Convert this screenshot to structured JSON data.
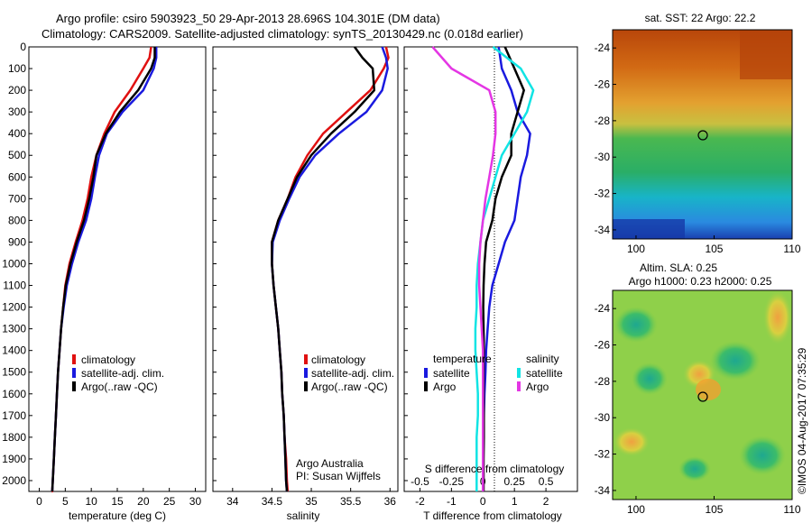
{
  "header": {
    "line1": "Argo profile: csiro 5903923_50 29-Apr-2013 28.696S 104.301E (DM data)",
    "line2": "Climatology: CARS2009. Satellite-adjusted climatology: synTS_20130429.nc (0.018d earlier)"
  },
  "colors": {
    "climatology": "#e01010",
    "satellite": "#1a1adf",
    "argo": "#000000",
    "cyan": "#11e4e4",
    "magenta": "#e436e4"
  },
  "depth_ticks": [
    "0",
    "100",
    "200",
    "300",
    "400",
    "500",
    "600",
    "700",
    "800",
    "900",
    "1000",
    "1100",
    "1200",
    "1300",
    "1400",
    "1500",
    "1600",
    "1700",
    "1800",
    "1900",
    "2000"
  ],
  "legend": {
    "items": [
      "climatology",
      "satellite-adj. clim.",
      "Argo(..raw -QC)"
    ]
  },
  "diff_legend": {
    "temperature": "temperature",
    "salinity": "salinity",
    "satellite": "satellite",
    "argo": "Argo"
  },
  "credits": {
    "line1": "Argo Australia",
    "line2": "PI: Susan Wijffels"
  },
  "sst_map": {
    "title": "sat. SST: 22  Argo: 22.2",
    "y_ticks": [
      "-24",
      "-26",
      "-28",
      "-30",
      "-32",
      "-34"
    ],
    "x_ticks": [
      "100",
      "105",
      "110"
    ]
  },
  "sla_map": {
    "title1": "Altim. SLA: 0.25",
    "title2": "Argo h1000: 0.23 h2000: 0.25",
    "y_ticks": [
      "-24",
      "-26",
      "-28",
      "-30",
      "-32",
      "-34"
    ],
    "x_ticks": [
      "100",
      "105",
      "110"
    ]
  },
  "timestamp": "©IMOS 04-Aug-2017 07:35:29",
  "chart_data": [
    {
      "type": "line",
      "xlabel": "temperature (deg C)",
      "ylabel": "",
      "xlim": [
        -2,
        32
      ],
      "ylim": [
        2050,
        0
      ],
      "x_ticks": [
        "0",
        "5",
        "10",
        "15",
        "20",
        "25",
        "30"
      ],
      "series": [
        {
          "name": "climatology",
          "color": "#e01010",
          "x": [
            21.5,
            21.2,
            20.0,
            17.5,
            14.5,
            12.5,
            11.0,
            10.0,
            9.3,
            8.3,
            7.0,
            5.8,
            5.0,
            4.6,
            4.2,
            3.9,
            3.6,
            3.4,
            3.2,
            3.0,
            2.8,
            2.6,
            2.5,
            2.4
          ],
          "y": [
            0,
            50,
            100,
            200,
            300,
            400,
            500,
            600,
            700,
            800,
            900,
            1000,
            1100,
            1200,
            1300,
            1400,
            1500,
            1600,
            1700,
            1800,
            1900,
            2000,
            2050,
            2050
          ]
        },
        {
          "name": "satellite-adj. clim.",
          "color": "#1a1adf",
          "x": [
            22.5,
            22.5,
            22.0,
            20.0,
            16.0,
            13.0,
            11.5,
            10.7,
            10.0,
            9.0,
            7.5,
            6.3,
            5.3,
            4.7,
            4.2,
            3.9,
            3.6,
            3.4,
            3.2,
            3.0,
            2.8,
            2.6,
            2.5
          ],
          "y": [
            0,
            50,
            100,
            200,
            300,
            400,
            500,
            600,
            700,
            800,
            900,
            1000,
            1100,
            1200,
            1300,
            1400,
            1500,
            1600,
            1700,
            1800,
            1900,
            2000,
            2050
          ]
        },
        {
          "name": "Argo(..raw -QC)",
          "color": "#000000",
          "x": [
            22.2,
            22.2,
            21.5,
            19.0,
            15.5,
            12.8,
            11.0,
            10.4,
            9.6,
            8.6,
            7.2,
            6.0,
            5.1,
            4.6,
            4.2,
            3.9,
            3.6,
            3.4,
            3.2,
            3.0,
            2.8,
            2.6,
            2.5
          ],
          "y": [
            0,
            50,
            100,
            200,
            300,
            400,
            500,
            600,
            700,
            800,
            900,
            1000,
            1100,
            1200,
            1300,
            1400,
            1500,
            1600,
            1700,
            1800,
            1900,
            2000,
            2050
          ]
        }
      ]
    },
    {
      "type": "line",
      "xlabel": "salinity",
      "ylabel": "",
      "xlim": [
        33.75,
        36.1
      ],
      "ylim": [
        2050,
        0
      ],
      "x_ticks": [
        "34",
        "34.5",
        "35",
        "35.5",
        "36"
      ],
      "series": [
        {
          "name": "climatology",
          "color": "#e01010",
          "x": [
            35.95,
            35.98,
            35.92,
            35.75,
            35.45,
            35.15,
            34.95,
            34.8,
            34.7,
            34.58,
            34.5,
            34.5,
            34.52,
            34.55,
            34.58,
            34.6,
            34.62,
            34.63,
            34.65,
            34.66,
            34.68,
            34.69,
            34.7
          ],
          "y": [
            0,
            50,
            100,
            200,
            300,
            400,
            500,
            600,
            700,
            800,
            900,
            1000,
            1100,
            1200,
            1300,
            1400,
            1500,
            1600,
            1700,
            1800,
            1900,
            2000,
            2050
          ]
        },
        {
          "name": "satellite-adj. clim.",
          "color": "#1a1adf",
          "x": [
            35.9,
            35.95,
            35.97,
            35.9,
            35.7,
            35.35,
            35.05,
            34.85,
            34.72,
            34.6,
            34.51,
            34.5,
            34.52,
            34.55,
            34.58,
            34.6,
            34.62,
            34.63,
            34.65,
            34.66,
            34.67,
            34.68,
            34.69
          ],
          "y": [
            0,
            50,
            100,
            200,
            300,
            400,
            500,
            600,
            700,
            800,
            900,
            1000,
            1100,
            1200,
            1300,
            1400,
            1500,
            1600,
            1700,
            1800,
            1900,
            2000,
            2050
          ]
        },
        {
          "name": "Argo(..raw -QC)",
          "color": "#000000",
          "x": [
            35.55,
            35.65,
            35.78,
            35.8,
            35.55,
            35.25,
            35.0,
            34.82,
            34.7,
            34.58,
            34.5,
            34.5,
            34.52,
            34.55,
            34.58,
            34.6,
            34.62,
            34.63,
            34.65,
            34.66,
            34.67,
            34.68,
            34.69
          ],
          "y": [
            0,
            50,
            100,
            200,
            300,
            400,
            500,
            600,
            700,
            800,
            900,
            1000,
            1100,
            1200,
            1300,
            1400,
            1500,
            1600,
            1700,
            1800,
            1900,
            2000,
            2050
          ]
        }
      ]
    },
    {
      "type": "line",
      "title": "",
      "xlabel": "T difference from climatology",
      "ylabel": "",
      "xlim": [
        -2.5,
        3.0
      ],
      "ylim": [
        2050,
        0
      ],
      "x_ticks": [
        "-2",
        "-1",
        "0",
        "1",
        "2"
      ],
      "x2label": "S difference from climatology",
      "x2_ticks": [
        "-0.5",
        "-0.25",
        "0",
        "0.25",
        "0.5"
      ],
      "x2lim": [
        -0.625,
        0.75
      ],
      "series": [
        {
          "name": "temperature satellite",
          "color": "#1a1adf",
          "x": [
            0.5,
            0.6,
            0.9,
            1.1,
            1.5,
            1.4,
            1.2,
            1.1,
            1.0,
            0.7,
            0.5,
            0.3,
            0.2,
            0.15,
            0.1,
            0.08,
            0.05,
            0.03,
            0.02,
            0.01,
            0.0,
            0.0
          ],
          "y": [
            0,
            100,
            200,
            300,
            400,
            500,
            600,
            700,
            800,
            900,
            1000,
            1100,
            1200,
            1300,
            1400,
            1500,
            1600,
            1700,
            1800,
            1900,
            2000,
            2050
          ]
        },
        {
          "name": "temperature Argo",
          "color": "#000000",
          "x": [
            0.7,
            1.0,
            1.3,
            1.1,
            0.9,
            0.9,
            0.6,
            0.4,
            0.3,
            0.1,
            0.05,
            0.02,
            0.01,
            0.02,
            0.03,
            0.02,
            0.02,
            0.03,
            0.03,
            0.02,
            0.02,
            0.02
          ],
          "y": [
            0,
            100,
            200,
            300,
            400,
            500,
            600,
            700,
            800,
            900,
            1000,
            1100,
            1200,
            1300,
            1400,
            1500,
            1600,
            1700,
            1800,
            1900,
            2000,
            2050
          ]
        },
        {
          "name": "salinity satellite",
          "color": "#11e4e4",
          "x": [
            0.08,
            0.3,
            0.4,
            0.35,
            0.25,
            0.15,
            0.1,
            0.05,
            0.0,
            -0.02,
            -0.04,
            -0.05,
            -0.05,
            -0.06,
            -0.06,
            -0.05,
            -0.04,
            -0.04,
            -0.05,
            -0.05,
            -0.05,
            -0.05
          ],
          "y": [
            0,
            100,
            200,
            300,
            400,
            500,
            600,
            700,
            800,
            900,
            1000,
            1100,
            1200,
            1300,
            1400,
            1500,
            1600,
            1700,
            1800,
            1900,
            2000,
            2050
          ]
        },
        {
          "name": "salinity Argo",
          "color": "#e436e4",
          "x": [
            -0.4,
            -0.25,
            0.05,
            0.1,
            0.1,
            0.08,
            0.05,
            0.02,
            0.0,
            -0.02,
            -0.03,
            -0.03,
            -0.02,
            -0.01,
            0.0,
            0.0,
            0.0,
            0.0,
            0.0,
            0.0,
            0.0,
            0.0
          ],
          "y": [
            0,
            100,
            200,
            300,
            400,
            500,
            600,
            700,
            800,
            900,
            1000,
            1100,
            1200,
            1300,
            1400,
            1500,
            1600,
            1700,
            1800,
            1900,
            2000,
            2050
          ]
        }
      ]
    }
  ]
}
